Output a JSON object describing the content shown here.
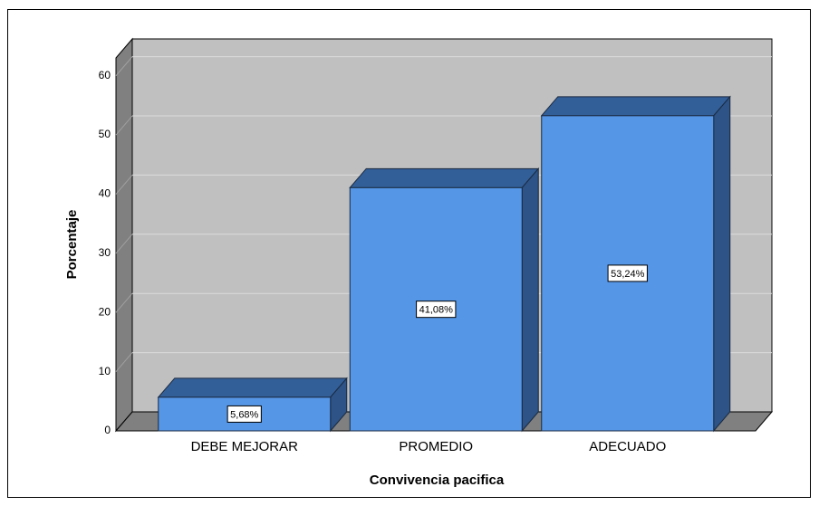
{
  "chart_data": {
    "type": "bar3d",
    "xlabel": "Convivencia pacifica",
    "ylabel": "Porcentaje",
    "categories": [
      "DEBE MEJORAR",
      "PROMEDIO",
      "ADECUADO"
    ],
    "values": [
      5.68,
      41.08,
      53.24
    ],
    "value_labels": [
      "5,68%",
      "41,08%",
      "53,24%"
    ],
    "color": "#5596e6",
    "ylim": [
      0,
      63
    ],
    "yticks": [
      0,
      10,
      20,
      30,
      40,
      50,
      60
    ],
    "grid": true
  }
}
